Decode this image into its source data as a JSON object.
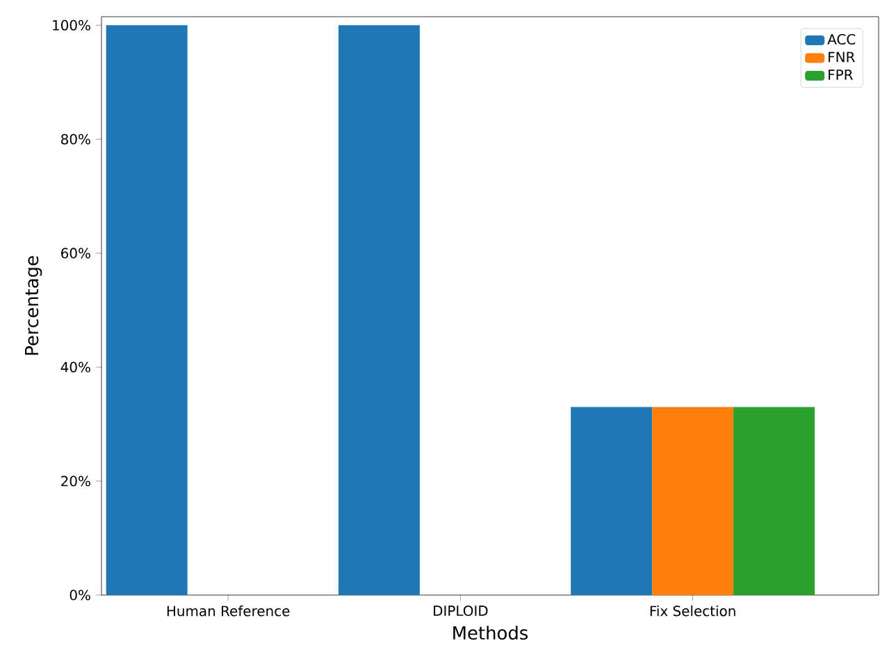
{
  "chart_data": {
    "type": "bar",
    "xlabel": "Methods",
    "ylabel": "Percentage",
    "categories": [
      "Human Reference",
      "DIPLOID",
      "Fix Selection"
    ],
    "series": [
      {
        "name": "ACC",
        "color": "#1f77b4",
        "values": [
          100,
          100,
          33
        ]
      },
      {
        "name": "FNR",
        "color": "#ff7f0e",
        "values": [
          0,
          0,
          33
        ]
      },
      {
        "name": "FPR",
        "color": "#2ca02c",
        "values": [
          0,
          0,
          33
        ]
      }
    ],
    "ylim": [
      0,
      101.5
    ],
    "yticks": [
      {
        "value": 0,
        "label": "0%"
      },
      {
        "value": 20,
        "label": "20%"
      },
      {
        "value": 40,
        "label": "40%"
      },
      {
        "value": 60,
        "label": "60%"
      },
      {
        "value": 80,
        "label": "80%"
      },
      {
        "value": 100,
        "label": "100%"
      }
    ],
    "legend": "top right",
    "grid": false
  }
}
